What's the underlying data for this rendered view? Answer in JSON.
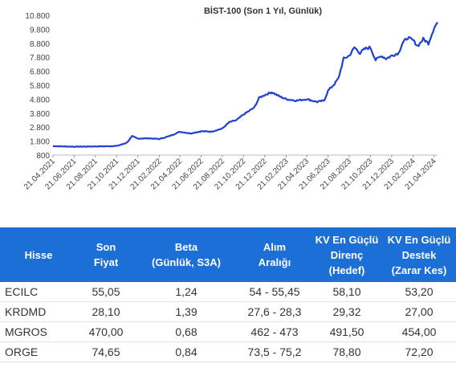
{
  "chart_data": {
    "type": "line",
    "title": "BİST-100 (Son 1 Yıl, Günlük)",
    "ylim": [
      800,
      10800
    ],
    "yticks": [
      "10.800",
      "9.800",
      "8.800",
      "7.800",
      "6.800",
      "5.800",
      "4.800",
      "3.800",
      "2.800",
      "1.800",
      "800"
    ],
    "xticks": [
      "21.04.2021",
      "21.06.2021",
      "21.08.2021",
      "21.10.2021",
      "21.12.2021",
      "21.02.2022",
      "21.04.2022",
      "21.06.2022",
      "21.08.2022",
      "21.10.2022",
      "21.12.2022",
      "21.02.2023",
      "21.04.2023",
      "21.06.2023",
      "21.08.2023",
      "21.10.2023",
      "21.12.2023",
      "21.02.2024",
      "21.04.2024"
    ],
    "series": [
      {
        "color": "#1f3fd6",
        "x": [
          "2021-04-21",
          "2021-05-21",
          "2021-06-21",
          "2021-07-21",
          "2021-08-21",
          "2021-09-21",
          "2021-10-21",
          "2021-11-10",
          "2021-11-20",
          "2021-12-05",
          "2021-12-21",
          "2022-01-21",
          "2022-02-21",
          "2022-03-21",
          "2022-04-21",
          "2022-05-21",
          "2022-06-21",
          "2022-07-21",
          "2022-08-21",
          "2022-09-10",
          "2022-10-01",
          "2022-10-21",
          "2022-11-21",
          "2022-12-05",
          "2022-12-21",
          "2023-01-10",
          "2023-02-01",
          "2023-02-21",
          "2023-03-21",
          "2023-04-21",
          "2023-05-21",
          "2023-06-10",
          "2023-06-21",
          "2023-07-10",
          "2023-07-21",
          "2023-08-05",
          "2023-08-21",
          "2023-09-05",
          "2023-09-21",
          "2023-10-05",
          "2023-10-21",
          "2023-11-05",
          "2023-11-21",
          "2023-12-05",
          "2023-12-21",
          "2024-01-10",
          "2024-01-21",
          "2024-02-05",
          "2024-02-21",
          "2024-03-05",
          "2024-03-21",
          "2024-04-05",
          "2024-04-21",
          "2024-05-01"
        ],
        "y": [
          1440,
          1420,
          1400,
          1410,
          1420,
          1430,
          1450,
          1600,
          1700,
          2150,
          1980,
          2000,
          1950,
          2150,
          2470,
          2350,
          2500,
          2480,
          2700,
          3150,
          3300,
          3700,
          4200,
          4900,
          5100,
          5300,
          5000,
          4800,
          4700,
          4800,
          4600,
          4700,
          5400,
          5900,
          6300,
          7700,
          7900,
          8500,
          8100,
          8400,
          8500,
          7600,
          7900,
          7700,
          7900,
          8100,
          8800,
          9200,
          9000,
          8600,
          9100,
          8800,
          9900,
          10300
        ]
      }
    ]
  },
  "table": {
    "headers": [
      [
        "Hisse"
      ],
      [
        "Son",
        "Fiyat"
      ],
      [
        "Beta",
        "(Günlük, S3A)"
      ],
      [
        "Alım",
        "Aralığı"
      ],
      [
        "KV En Güçlü",
        "Direnç",
        "(Hedef)"
      ],
      [
        "KV En Güçlü",
        "Destek",
        "(Zarar Kes)"
      ]
    ],
    "rows": [
      [
        "ECILC",
        "55,05",
        "1,24",
        "54 - 55,45",
        "58,10",
        "53,20"
      ],
      [
        "KRDMD",
        "28,10",
        "1,39",
        "27,6 - 28,3",
        "29,32",
        "27,00"
      ],
      [
        "MGROS",
        "470,00",
        "0,68",
        "462 - 473",
        "491,50",
        "454,00"
      ],
      [
        "ORGE",
        "74,65",
        "0,84",
        "73,5 - 75,2",
        "78,80",
        "72,20"
      ]
    ]
  },
  "colors": {
    "header_bg": "#1d6fd8",
    "header_text": "#ffffff",
    "line": "#1f3fd6"
  }
}
